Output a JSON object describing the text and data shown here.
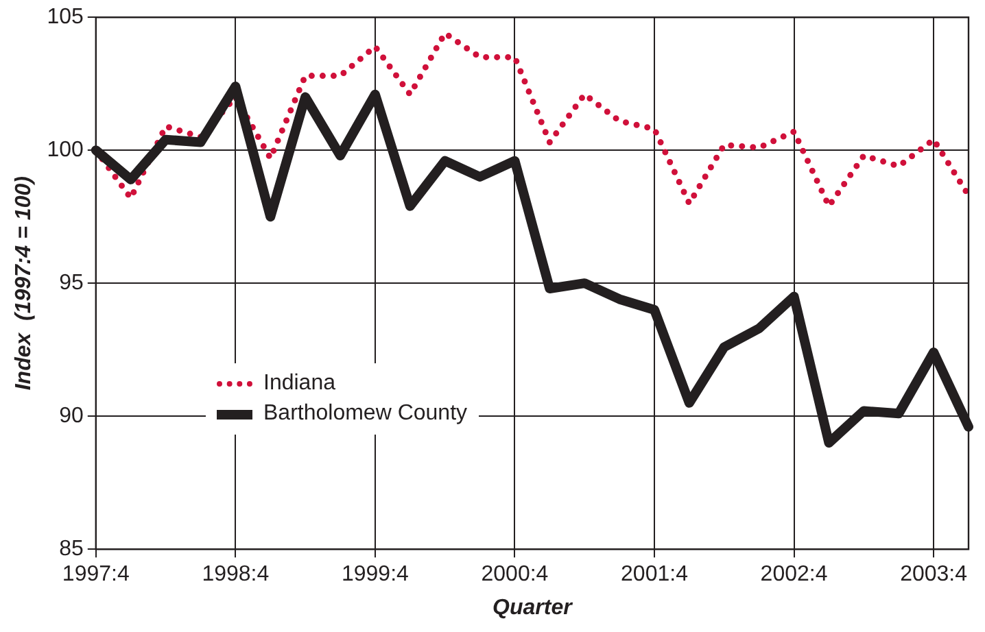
{
  "chart_data": {
    "type": "line",
    "xlabel": "Quarter",
    "ylabel": "Index  (1997:4 = 100)",
    "categories": [
      "1997:4",
      null,
      null,
      null,
      "1998:4",
      null,
      null,
      null,
      "1999:4",
      null,
      null,
      null,
      "2000:4",
      null,
      null,
      null,
      "2001:4",
      null,
      null,
      null,
      "2002:4",
      null,
      null,
      null,
      "2003:4",
      null
    ],
    "series": [
      {
        "name": "Indiana",
        "color": "#d0103a",
        "line_style": "dotted",
        "values": [
          100,
          98.2,
          100.9,
          100.5,
          102.0,
          99.7,
          102.8,
          102.8,
          103.9,
          102.1,
          104.4,
          103.5,
          103.5,
          100.3,
          102.1,
          101.1,
          100.8,
          98.0,
          100.2,
          100.1,
          100.7,
          97.9,
          99.8,
          99.4,
          100.4,
          98.3
        ]
      },
      {
        "name": "Bartholomew County",
        "color": "#231f20",
        "line_style": "solid",
        "values": [
          100,
          98.9,
          100.4,
          100.3,
          102.4,
          97.5,
          102.0,
          99.8,
          102.1,
          97.9,
          99.6,
          99.0,
          99.6,
          94.8,
          95.0,
          94.4,
          94.0,
          90.5,
          92.6,
          93.3,
          94.5,
          89.0,
          90.2,
          90.1,
          92.4,
          89.6
        ]
      }
    ],
    "ylim": [
      85,
      105
    ],
    "yticks": [
      85,
      90,
      95,
      100,
      105
    ],
    "grid": true,
    "legend": "center left",
    "marker": "none"
  }
}
